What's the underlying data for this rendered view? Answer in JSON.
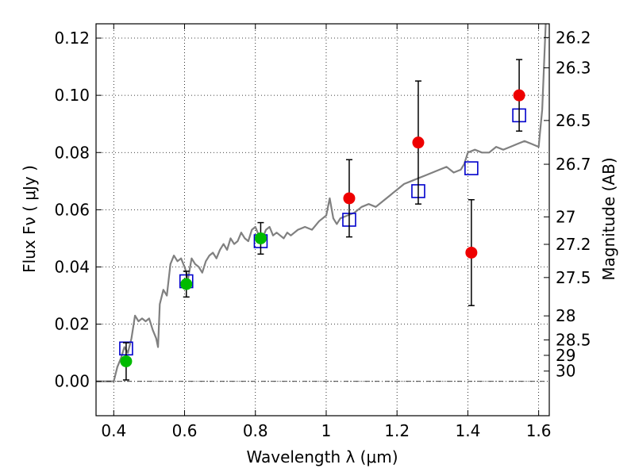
{
  "chart_data": {
    "type": "scatter",
    "title": "",
    "xlabel": "Wavelength  λ (μm)",
    "ylabel": "Flux  Fν  ( μJy )",
    "y2label": "Magnitude (AB)",
    "xlim": [
      0.35,
      1.63
    ],
    "ylim": [
      -0.012,
      0.125
    ],
    "grid": true,
    "x_ticks": [
      0.4,
      0.6,
      0.8,
      1.0,
      1.2,
      1.4,
      1.6
    ],
    "x_tick_labels": [
      "0.4",
      "0.6",
      "0.8",
      "1",
      "1.2",
      "1.4",
      "1.6"
    ],
    "y_ticks": [
      0.0,
      0.02,
      0.04,
      0.06,
      0.08,
      0.1,
      0.12
    ],
    "y_tick_labels": [
      "0.00",
      "0.02",
      "0.04",
      "0.06",
      "0.08",
      "0.10",
      "0.12"
    ],
    "y2_ticks": [
      {
        "label": "26.2",
        "flux": 0.1202
      },
      {
        "label": "26.3",
        "flux": 0.1096
      },
      {
        "label": "26.5",
        "flux": 0.0912
      },
      {
        "label": "26.7",
        "flux": 0.0759
      },
      {
        "label": "27",
        "flux": 0.0575
      },
      {
        "label": "27.2",
        "flux": 0.0479
      },
      {
        "label": "27.5",
        "flux": 0.0363
      },
      {
        "label": "28",
        "flux": 0.0229
      },
      {
        "label": "28.5",
        "flux": 0.0145
      },
      {
        "label": "29",
        "flux": 0.0091
      },
      {
        "label": "30",
        "flux": 0.0036
      }
    ],
    "series": [
      {
        "kind": "line",
        "color": "#808080",
        "x": [
          0.35,
          0.4,
          0.41,
          0.42,
          0.43,
          0.44,
          0.45,
          0.46,
          0.47,
          0.48,
          0.49,
          0.5,
          0.51,
          0.52,
          0.525,
          0.53,
          0.54,
          0.55,
          0.56,
          0.57,
          0.58,
          0.59,
          0.6,
          0.61,
          0.62,
          0.63,
          0.64,
          0.65,
          0.66,
          0.67,
          0.68,
          0.69,
          0.7,
          0.71,
          0.72,
          0.73,
          0.74,
          0.75,
          0.76,
          0.77,
          0.78,
          0.79,
          0.8,
          0.81,
          0.82,
          0.83,
          0.84,
          0.85,
          0.86,
          0.87,
          0.88,
          0.89,
          0.9,
          0.92,
          0.94,
          0.96,
          0.98,
          1.0,
          1.01,
          1.02,
          1.03,
          1.04,
          1.06,
          1.08,
          1.1,
          1.12,
          1.14,
          1.16,
          1.18,
          1.19,
          1.2,
          1.22,
          1.24,
          1.26,
          1.28,
          1.3,
          1.32,
          1.34,
          1.36,
          1.38,
          1.39,
          1.4,
          1.42,
          1.44,
          1.46,
          1.48,
          1.5,
          1.52,
          1.54,
          1.56,
          1.58,
          1.6,
          1.61,
          1.62
        ],
        "y": [
          0.0,
          0.0,
          0.005,
          0.008,
          0.012,
          0.01,
          0.015,
          0.023,
          0.021,
          0.022,
          0.021,
          0.022,
          0.018,
          0.015,
          0.012,
          0.027,
          0.032,
          0.03,
          0.041,
          0.044,
          0.042,
          0.043,
          0.04,
          0.036,
          0.043,
          0.041,
          0.04,
          0.038,
          0.042,
          0.044,
          0.045,
          0.043,
          0.046,
          0.048,
          0.046,
          0.05,
          0.048,
          0.049,
          0.052,
          0.05,
          0.049,
          0.053,
          0.054,
          0.051,
          0.05,
          0.053,
          0.054,
          0.051,
          0.052,
          0.051,
          0.05,
          0.052,
          0.051,
          0.053,
          0.054,
          0.053,
          0.056,
          0.058,
          0.064,
          0.057,
          0.055,
          0.057,
          0.058,
          0.059,
          0.061,
          0.062,
          0.061,
          0.063,
          0.065,
          0.066,
          0.067,
          0.069,
          0.07,
          0.071,
          0.072,
          0.073,
          0.074,
          0.075,
          0.073,
          0.074,
          0.076,
          0.08,
          0.081,
          0.08,
          0.08,
          0.082,
          0.081,
          0.082,
          0.083,
          0.084,
          0.083,
          0.082,
          0.095,
          0.125
        ]
      },
      {
        "kind": "open-square",
        "color": "#0000cc",
        "x": [
          0.435,
          0.605,
          0.815,
          1.065,
          1.26,
          1.41,
          1.545
        ],
        "y": [
          0.0115,
          0.035,
          0.049,
          0.0565,
          0.0665,
          0.0745,
          0.093
        ]
      },
      {
        "kind": "filled-circle",
        "color": "#00bb00",
        "x": [
          0.435,
          0.605,
          0.815
        ],
        "y": [
          0.007,
          0.034,
          0.05
        ],
        "yerr": [
          0.0065,
          0.0045,
          0.0055
        ]
      },
      {
        "kind": "filled-circle",
        "color": "#ee0000",
        "x": [
          1.065,
          1.26,
          1.41,
          1.545
        ],
        "y": [
          0.064,
          0.0835,
          0.045,
          0.1
        ],
        "yerr": [
          0.0135,
          0.0215,
          0.0185,
          0.0125
        ]
      }
    ]
  }
}
